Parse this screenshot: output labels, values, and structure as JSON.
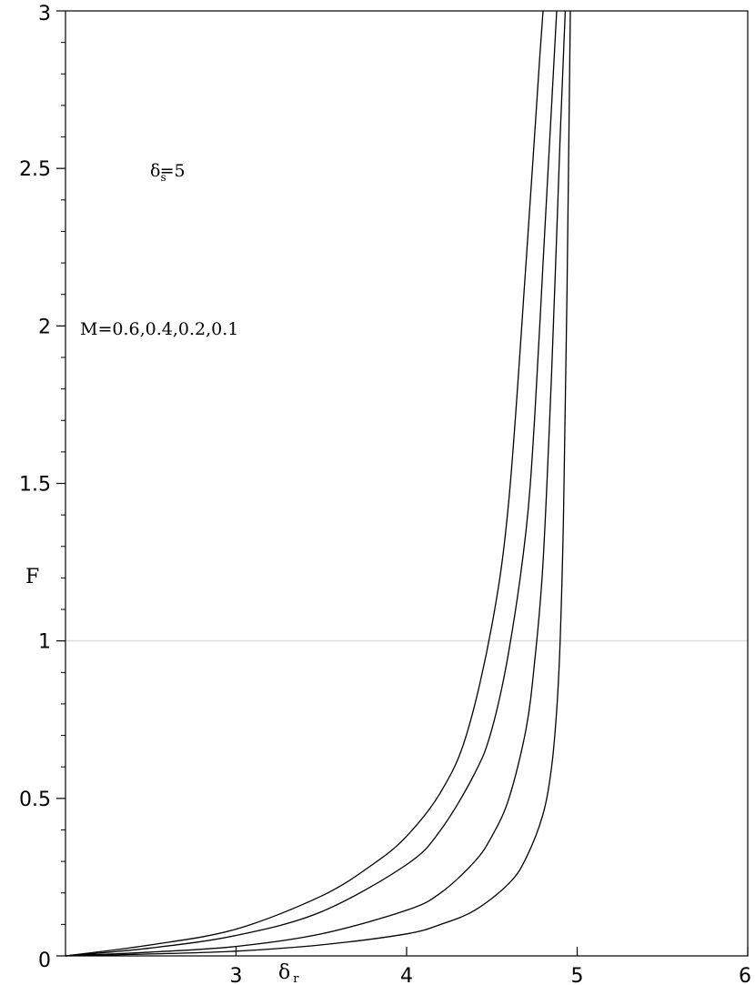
{
  "chart_data": {
    "type": "line",
    "xlabel": "δ",
    "xlabel_sub": "r",
    "ylabel": "F",
    "xlim": [
      2,
      6
    ],
    "ylim": [
      0,
      3
    ],
    "x_ticks": [
      {
        "value": 3,
        "label": "3"
      },
      {
        "value": 4,
        "label": "4"
      },
      {
        "value": 5,
        "label": "5"
      },
      {
        "value": 6,
        "label": "6"
      }
    ],
    "y_ticks": [
      {
        "value": 0,
        "label": "0"
      },
      {
        "value": 0.5,
        "label": "0.5"
      },
      {
        "value": 1,
        "label": "1"
      },
      {
        "value": 1.5,
        "label": "1.5"
      },
      {
        "value": 2,
        "label": "2"
      },
      {
        "value": 2.5,
        "label": "2.5"
      },
      {
        "value": 3,
        "label": "3"
      }
    ],
    "reference_line": {
      "y": 1
    },
    "annotations": {
      "delta_s": {
        "symbol": "δ",
        "sub": "s",
        "text": "=5"
      },
      "mass": {
        "text": "M=0.6,0.4,0.2,0.1"
      }
    },
    "grid": false,
    "series": [
      {
        "x": [
          2.0,
          2.5,
          3.0,
          3.5,
          3.8,
          4.0,
          4.2,
          4.35,
          4.5,
          4.6,
          4.7,
          4.75,
          4.78,
          4.8
        ],
        "y": [
          0.0,
          0.035,
          0.085,
          0.19,
          0.29,
          0.38,
          0.52,
          0.7,
          1.05,
          1.45,
          2.2,
          2.6,
          2.85,
          3.0
        ]
      },
      {
        "x": [
          2.0,
          2.5,
          3.0,
          3.5,
          4.0,
          4.2,
          4.4,
          4.5,
          4.6,
          4.7,
          4.75,
          4.8,
          4.85,
          4.88
        ],
        "y": [
          0.0,
          0.025,
          0.065,
          0.14,
          0.29,
          0.4,
          0.58,
          0.72,
          0.97,
          1.35,
          1.7,
          2.2,
          2.7,
          3.0
        ]
      },
      {
        "x": [
          2.0,
          2.5,
          3.0,
          3.5,
          4.0,
          4.2,
          4.4,
          4.5,
          4.6,
          4.7,
          4.75,
          4.8,
          4.85,
          4.9,
          4.93
        ],
        "y": [
          0.0,
          0.012,
          0.03,
          0.07,
          0.145,
          0.2,
          0.3,
          0.38,
          0.5,
          0.72,
          0.93,
          1.25,
          1.85,
          2.6,
          3.0
        ]
      },
      {
        "x": [
          2.0,
          2.5,
          3.0,
          3.5,
          4.0,
          4.2,
          4.4,
          4.6,
          4.7,
          4.8,
          4.85,
          4.88,
          4.9,
          4.92,
          4.94,
          4.96
        ],
        "y": [
          0.0,
          0.006,
          0.015,
          0.035,
          0.07,
          0.1,
          0.145,
          0.23,
          0.31,
          0.45,
          0.6,
          0.78,
          1.0,
          1.4,
          2.1,
          3.0
        ]
      }
    ]
  }
}
